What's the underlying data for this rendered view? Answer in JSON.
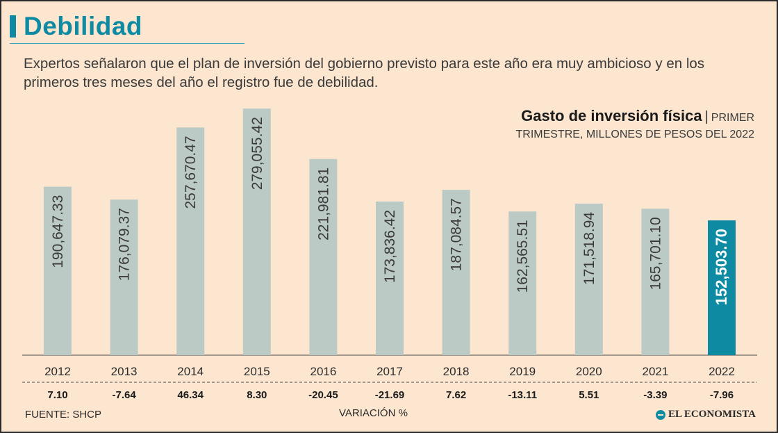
{
  "header": {
    "title": "Debilidad",
    "intro": "Expertos señalaron que el plan de inversión del gobierno previsto para este año era muy ambicioso y en los primeros tres meses del año el registro fue de debilidad."
  },
  "colors": {
    "accent": "#0f8aa3",
    "bar": "#bccac5",
    "highlight_bar": "#0f8aa3",
    "background": "#fde6d0",
    "text": "#2b2b2b"
  },
  "chart_data": {
    "type": "bar",
    "title": "Gasto de inversión física",
    "subtitle_part1": "PRIMER",
    "subtitle_part2": "TRIMESTRE, MILLONES DE PESOS DEL 2022",
    "categories": [
      "2012",
      "2013",
      "2014",
      "2015",
      "2016",
      "2017",
      "2018",
      "2019",
      "2020",
      "2021",
      "2022"
    ],
    "values": [
      190647.33,
      176079.37,
      257670.47,
      279055.42,
      221981.81,
      173836.42,
      187084.57,
      162565.51,
      171518.94,
      165701.1,
      152503.7
    ],
    "value_labels": [
      "190,647.33",
      "176,079.37",
      "257,670.47",
      "279,055.42",
      "221,981.81",
      "173,836.42",
      "187,084.57",
      "162,565.51",
      "171,518.94",
      "165,701.10",
      "152,503.70"
    ],
    "variation": [
      "7.10",
      "-7.64",
      "46.34",
      "8.30",
      "-20.45",
      "-21.69",
      "7.62",
      "-13.11",
      "5.51",
      "-3.39",
      "-7.96"
    ],
    "variation_label": "VARIACIÓN %",
    "highlight_category": "2022",
    "ylim": [
      0,
      280000
    ],
    "xlabel": "",
    "ylabel": ""
  },
  "footer": {
    "source": "FUENTE: SHCP",
    "logo_text": "EL ECONOMISTA"
  }
}
